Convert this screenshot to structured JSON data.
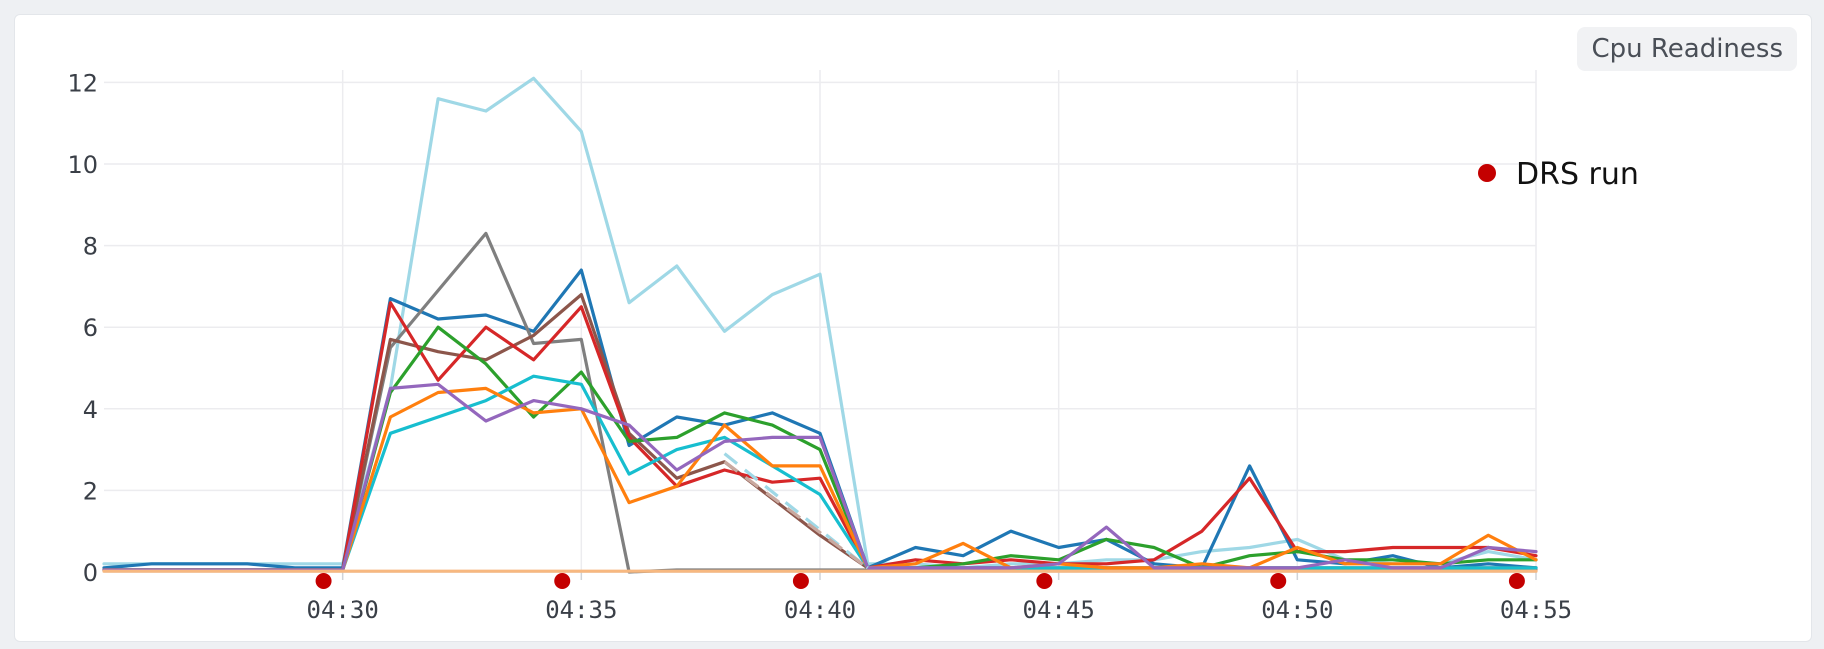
{
  "panel": {
    "chip_label": "Cpu Readiness"
  },
  "legend": {
    "marker_color": "#c40000",
    "label": "DRS run"
  },
  "chart_data": {
    "type": "line",
    "title": "",
    "xlabel": "",
    "ylabel": "",
    "grid": true,
    "x_domain": [
      "04:25",
      "04:55"
    ],
    "ylim": [
      0,
      12.5
    ],
    "yticks": [
      0,
      2,
      4,
      6,
      8,
      10,
      12
    ],
    "xticks": [
      "04:30",
      "04:35",
      "04:40",
      "04:45",
      "04:50",
      "04:55"
    ],
    "x": [
      "04:25",
      "04:26",
      "04:27",
      "04:28",
      "04:29",
      "04:30",
      "04:31",
      "04:32",
      "04:33",
      "04:34",
      "04:35",
      "04:36",
      "04:37",
      "04:38",
      "04:39",
      "04:40",
      "04:41",
      "04:42",
      "04:43",
      "04:44",
      "04:45",
      "04:46",
      "04:47",
      "04:48",
      "04:49",
      "04:50",
      "04:51",
      "04:52",
      "04:53",
      "04:54",
      "04:55"
    ],
    "series": [
      {
        "color": "#9fd8e6",
        "values": [
          0.2,
          0.2,
          0.2,
          0.2,
          0.2,
          0.2,
          4.5,
          11.6,
          11.3,
          12.1,
          10.8,
          6.6,
          7.5,
          5.9,
          6.8,
          7.3,
          0.2,
          0.2,
          0.1,
          0.2,
          0.2,
          0.3,
          0.3,
          0.5,
          0.6,
          0.8,
          0.3,
          0.2,
          0.2,
          0.5,
          0.3
        ]
      },
      {
        "color": "#1f77b4",
        "values": [
          0.1,
          0.2,
          0.2,
          0.2,
          0.1,
          0.1,
          6.7,
          6.2,
          6.3,
          5.9,
          7.4,
          3.1,
          3.8,
          3.6,
          3.9,
          3.4,
          0.1,
          0.6,
          0.4,
          1.0,
          0.6,
          0.8,
          0.2,
          0.1,
          2.6,
          0.3,
          0.2,
          0.4,
          0.1,
          0.2,
          0.1
        ]
      },
      {
        "color": "#7f7f7f",
        "values": [
          0.05,
          0.05,
          0.05,
          0.05,
          0.05,
          0.05,
          5.5,
          6.9,
          8.3,
          5.6,
          5.7,
          0.0,
          0.05,
          0.05,
          0.05,
          0.05,
          0.05,
          0.05,
          0.05,
          0.05,
          0.05,
          0.05,
          0.05,
          0.05,
          0.05,
          0.05,
          0.05,
          0.05,
          0.05,
          0.05,
          0.05
        ]
      },
      {
        "color": "#8c564b",
        "values": [
          0.05,
          0.05,
          0.05,
          0.05,
          0.05,
          0.05,
          5.7,
          5.4,
          5.2,
          5.8,
          6.8,
          3.4,
          2.3,
          2.7,
          1.8,
          0.9,
          0.1,
          0.1,
          0.1,
          0.1,
          0.1,
          0.1,
          0.1,
          0.1,
          0.1,
          0.1,
          0.1,
          0.1,
          0.1,
          0.1,
          0.1
        ]
      },
      {
        "color": "#d62728",
        "values": [
          0.05,
          0.05,
          0.05,
          0.05,
          0.05,
          0.05,
          6.6,
          4.7,
          6.0,
          5.2,
          6.5,
          3.3,
          2.1,
          2.5,
          2.2,
          2.3,
          0.1,
          0.3,
          0.2,
          0.3,
          0.2,
          0.2,
          0.3,
          1.0,
          2.3,
          0.5,
          0.5,
          0.6,
          0.6,
          0.6,
          0.4
        ]
      },
      {
        "color": "#2ca02c",
        "values": [
          0.05,
          0.05,
          0.05,
          0.05,
          0.05,
          0.05,
          4.4,
          6.0,
          5.1,
          3.8,
          4.9,
          3.2,
          3.3,
          3.9,
          3.6,
          3.0,
          0.1,
          0.1,
          0.2,
          0.4,
          0.3,
          0.8,
          0.6,
          0.1,
          0.4,
          0.5,
          0.3,
          0.3,
          0.2,
          0.3,
          0.3
        ]
      },
      {
        "color": "#17becf",
        "values": [
          0.05,
          0.05,
          0.05,
          0.05,
          0.05,
          0.05,
          3.4,
          3.8,
          4.2,
          4.8,
          4.6,
          2.4,
          3.0,
          3.3,
          2.6,
          1.9,
          0.1,
          0.1,
          0.1,
          0.1,
          0.1,
          0.1,
          0.1,
          0.1,
          0.1,
          0.1,
          0.1,
          0.1,
          0.1,
          0.1,
          0.1
        ]
      },
      {
        "color": "#ff7f0e",
        "values": [
          0.05,
          0.05,
          0.05,
          0.05,
          0.05,
          0.05,
          3.8,
          4.4,
          4.5,
          3.9,
          4.0,
          1.7,
          2.1,
          3.6,
          2.6,
          2.6,
          0.1,
          0.2,
          0.7,
          0.1,
          0.2,
          0.1,
          0.1,
          0.2,
          0.1,
          0.6,
          0.2,
          0.2,
          0.2,
          0.9,
          0.3
        ]
      },
      {
        "color": "#9467bd",
        "values": [
          0.05,
          0.05,
          0.05,
          0.05,
          0.05,
          0.05,
          4.5,
          4.6,
          3.7,
          4.2,
          4.0,
          3.6,
          2.5,
          3.2,
          3.3,
          3.3,
          0.1,
          0.1,
          0.1,
          0.1,
          0.2,
          1.1,
          0.1,
          0.1,
          0.1,
          0.1,
          0.3,
          0.1,
          0.1,
          0.6,
          0.5
        ]
      },
      {
        "color": "#f7b880",
        "values": [
          0.02,
          0.02,
          0.02,
          0.02,
          0.02,
          0.02,
          0.02,
          0.02,
          0.02,
          0.02,
          0.02,
          0.02,
          0.02,
          0.02,
          0.02,
          0.02,
          0.02,
          0.02,
          0.02,
          0.02,
          0.02,
          0.02,
          0.02,
          0.02,
          0.02,
          0.02,
          0.02,
          0.02,
          0.02,
          0.02,
          0.02
        ]
      }
    ],
    "dashed_segments": [
      {
        "color": "#9fd8e6",
        "x": [
          "04:38",
          "04:41"
        ],
        "y": [
          2.9,
          0.1
        ]
      },
      {
        "color": "#c9a9a0",
        "x": [
          "04:38",
          "04:41"
        ],
        "y": [
          2.7,
          0.1
        ]
      }
    ],
    "drs_runs": [
      "04:29.6",
      "04:34.6",
      "04:39.6",
      "04:44.7",
      "04:49.6",
      "04:54.6"
    ]
  }
}
